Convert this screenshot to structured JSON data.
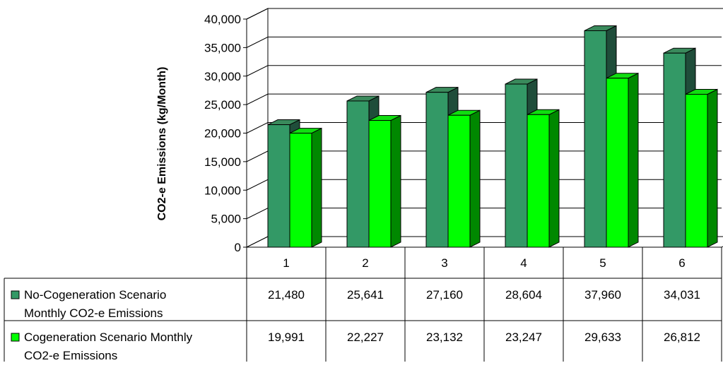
{
  "chart_data": {
    "type": "bar",
    "variant": "3d-clustered-with-data-table",
    "ylabel": "CO2-e Emissions (kg/Month)",
    "ylim": [
      0,
      40000
    ],
    "yticks": [
      "0",
      "5,000",
      "10,000",
      "15,000",
      "20,000",
      "25,000",
      "30,000",
      "35,000",
      "40,000"
    ],
    "ytick_values": [
      0,
      5000,
      10000,
      15000,
      20000,
      25000,
      30000,
      35000,
      40000
    ],
    "categories": [
      "1",
      "2",
      "3",
      "4",
      "5",
      "6"
    ],
    "grid": true,
    "legend": "data-table-left",
    "series": [
      {
        "name_lines": [
          "No-Cogeneration Scenario",
          "Monthly CO2-e Emissions"
        ],
        "values": [
          21480,
          25641,
          27160,
          28604,
          37960,
          34031
        ],
        "labels": [
          "21,480",
          "25,641",
          "27,160",
          "28,604",
          "37,960",
          "34,031"
        ],
        "color": "#339966",
        "color_top": "#3a8a5c",
        "color_side": "#1f4d3a"
      },
      {
        "name_lines": [
          "Cogeneration Scenario Monthly",
          "CO2-e Emissions"
        ],
        "values": [
          19991,
          22227,
          23132,
          23247,
          29633,
          26812
        ],
        "labels": [
          "19,991",
          "22,227",
          "23,132",
          "23,247",
          "29,633",
          "26,812"
        ],
        "color": "#00ff00",
        "color_top": "#11dd11",
        "color_side": "#008800"
      }
    ]
  }
}
